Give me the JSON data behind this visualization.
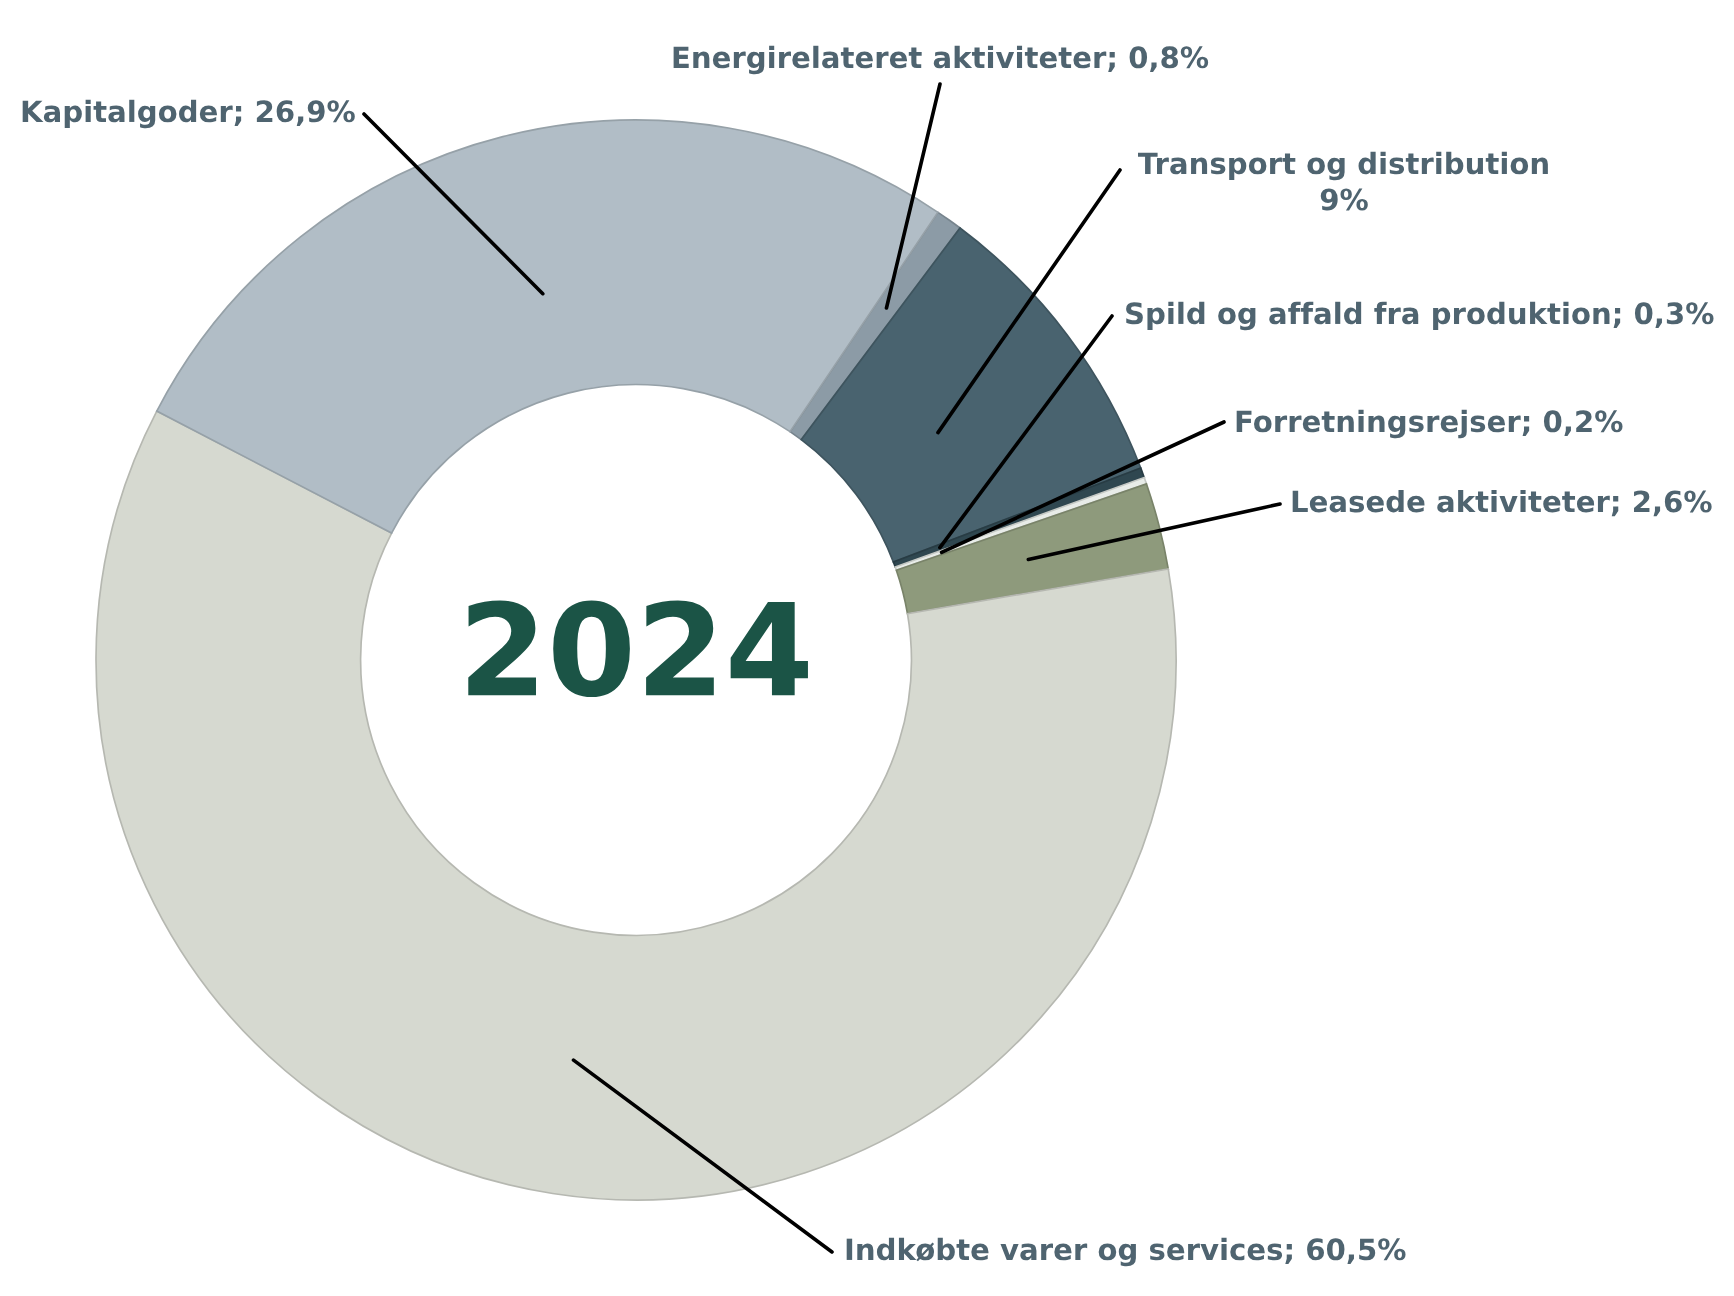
{
  "chart_data": {
    "type": "donut",
    "title": "2024",
    "categories": [
      "Energirelateret aktiviteter",
      "Transport og distribution",
      "Spild og affald fra produktion",
      "Forretningsrejser",
      "Leasede aktiviteter",
      "Indkøbte varer og services",
      "Kapitalgoder"
    ],
    "values": [
      0.8,
      9,
      0.3,
      0.2,
      2.6,
      60.5,
      26.9
    ],
    "value_labels": [
      "0,8%",
      "9%",
      "0,3%",
      "0,2%",
      "2,6%",
      "60,5%",
      "26,9%"
    ],
    "colors": [
      "#8c9ba6",
      "#49636f",
      "#2f4750",
      "#e8ece8",
      "#8e9a7c",
      "#d6d9d0",
      "#b1bdc6"
    ],
    "legend": false
  }
}
